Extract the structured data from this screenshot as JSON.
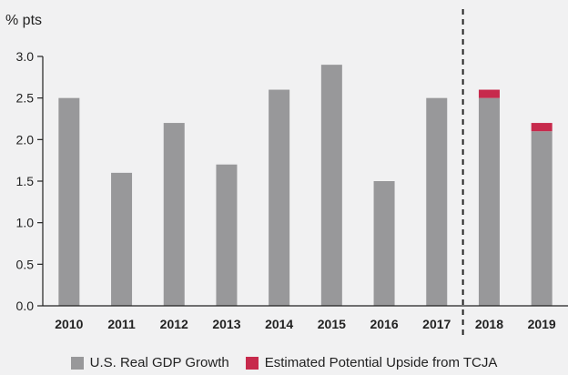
{
  "colors": {
    "background": "#f1f1f2",
    "gdp": "#98989a",
    "upside": "#c72a4c",
    "axis": "#222222"
  },
  "chart_data": {
    "type": "bar",
    "stacked": true,
    "unit_label": "% pts",
    "categories": [
      "2010",
      "2011",
      "2012",
      "2013",
      "2014",
      "2015",
      "2016",
      "2017",
      "2018",
      "2019"
    ],
    "series": [
      {
        "name": "U.S. Real GDP Growth",
        "color": "#98989a",
        "values": [
          2.5,
          1.6,
          2.2,
          1.7,
          2.6,
          2.9,
          1.5,
          2.5,
          2.5,
          2.1
        ]
      },
      {
        "name": "Estimated Potential Upside from TCJA",
        "color": "#c72a4c",
        "values": [
          0,
          0,
          0,
          0,
          0,
          0,
          0,
          0,
          0.1,
          0.1
        ]
      }
    ],
    "ylim": [
      0,
      3.0
    ],
    "yticks": [
      "0.0",
      "0.5",
      "1.0",
      "1.5",
      "2.0",
      "2.5",
      "3.0"
    ],
    "grid": false,
    "divider_after": "2017",
    "legend_position": "bottom"
  }
}
